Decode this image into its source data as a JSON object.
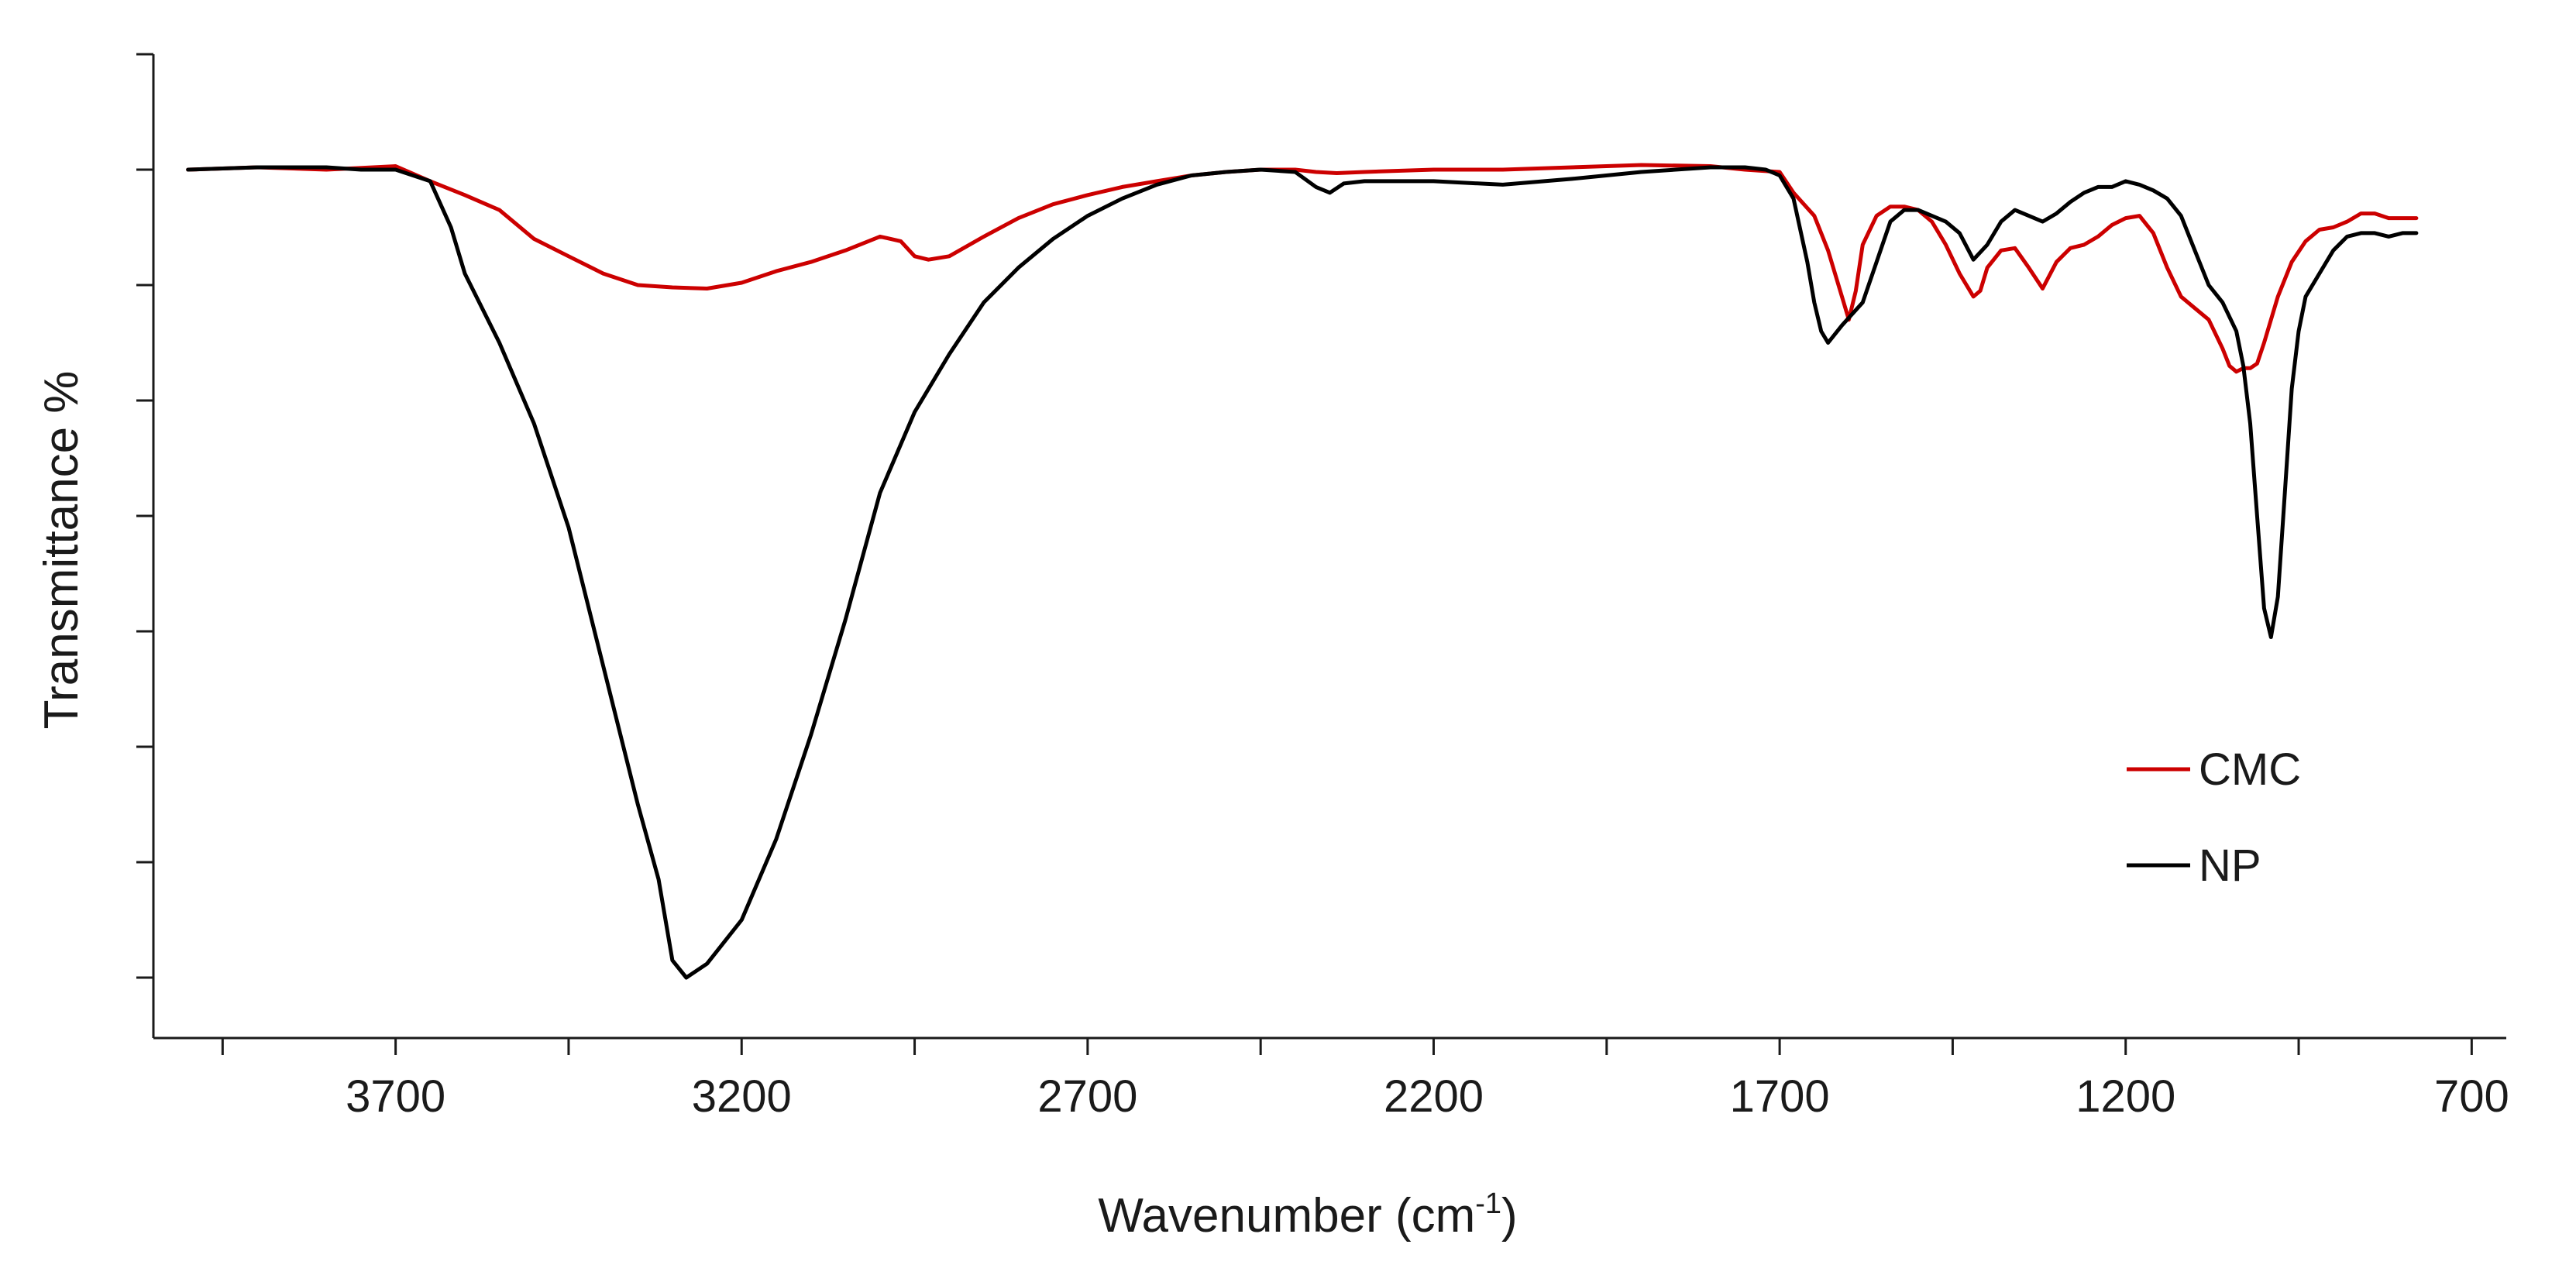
{
  "chart_data": {
    "type": "line",
    "title": "",
    "xlabel": "Wavenumber (cm",
    "xlabel_sup": "-1",
    "xlabel_close": ")",
    "ylabel": "Transmittance %",
    "xlim": [
      4050,
      650
    ],
    "xticks": [
      3700,
      3200,
      2700,
      2200,
      1700,
      1200,
      700
    ],
    "xtick_labels": [
      "3700",
      "3200",
      "2700",
      "2200",
      "1700",
      "1200",
      "700"
    ],
    "ylim": [
      0,
      8
    ],
    "y_tick_count": 8,
    "y_tick_labels_shown": false,
    "grid": false,
    "legend_position": "right-middle",
    "series": [
      {
        "name": "CMC",
        "color": "#cc0000",
        "x": [
          4000,
          3900,
          3800,
          3700,
          3650,
          3600,
          3550,
          3500,
          3450,
          3400,
          3350,
          3300,
          3250,
          3200,
          3150,
          3100,
          3050,
          3000,
          2970,
          2950,
          2930,
          2900,
          2850,
          2800,
          2750,
          2700,
          2650,
          2600,
          2550,
          2500,
          2450,
          2400,
          2370,
          2340,
          2300,
          2200,
          2100,
          2000,
          1900,
          1800,
          1750,
          1700,
          1680,
          1650,
          1630,
          1610,
          1600,
          1590,
          1580,
          1560,
          1540,
          1520,
          1500,
          1480,
          1460,
          1440,
          1420,
          1410,
          1400,
          1380,
          1360,
          1340,
          1320,
          1300,
          1280,
          1260,
          1240,
          1220,
          1200,
          1180,
          1160,
          1140,
          1120,
          1100,
          1080,
          1060,
          1050,
          1040,
          1030,
          1020,
          1010,
          1000,
          980,
          960,
          940,
          920,
          900,
          880,
          860,
          840,
          820,
          800,
          780
        ],
        "y": [
          7.0,
          7.02,
          7.0,
          7.03,
          6.9,
          6.78,
          6.65,
          6.4,
          6.25,
          6.1,
          6.0,
          5.98,
          5.97,
          6.02,
          6.12,
          6.2,
          6.3,
          6.42,
          6.38,
          6.25,
          6.22,
          6.25,
          6.42,
          6.58,
          6.7,
          6.78,
          6.85,
          6.9,
          6.95,
          6.98,
          7.0,
          7.0,
          6.98,
          6.97,
          6.98,
          7.0,
          7.0,
          7.02,
          7.04,
          7.03,
          7.0,
          6.98,
          6.8,
          6.6,
          6.3,
          5.9,
          5.7,
          5.95,
          6.35,
          6.6,
          6.68,
          6.68,
          6.65,
          6.55,
          6.35,
          6.1,
          5.9,
          5.95,
          6.15,
          6.3,
          6.32,
          6.15,
          5.97,
          6.2,
          6.32,
          6.35,
          6.42,
          6.52,
          6.58,
          6.6,
          6.45,
          6.15,
          5.9,
          5.8,
          5.7,
          5.45,
          5.3,
          5.25,
          5.28,
          5.28,
          5.32,
          5.5,
          5.9,
          6.2,
          6.38,
          6.48,
          6.5,
          6.55,
          6.62,
          6.62,
          6.58,
          6.58,
          6.58
        ]
      },
      {
        "name": "NP",
        "color": "#000000",
        "x": [
          4000,
          3900,
          3800,
          3750,
          3700,
          3650,
          3620,
          3600,
          3550,
          3500,
          3450,
          3400,
          3350,
          3320,
          3300,
          3280,
          3250,
          3200,
          3150,
          3100,
          3050,
          3000,
          2950,
          2900,
          2850,
          2800,
          2750,
          2700,
          2650,
          2600,
          2550,
          2500,
          2450,
          2400,
          2370,
          2350,
          2330,
          2300,
          2200,
          2100,
          2000,
          1900,
          1800,
          1750,
          1720,
          1700,
          1680,
          1660,
          1650,
          1640,
          1630,
          1610,
          1580,
          1560,
          1540,
          1520,
          1500,
          1480,
          1460,
          1440,
          1420,
          1400,
          1380,
          1360,
          1340,
          1320,
          1300,
          1280,
          1260,
          1240,
          1220,
          1200,
          1180,
          1160,
          1140,
          1120,
          1100,
          1080,
          1060,
          1040,
          1030,
          1020,
          1010,
          1000,
          990,
          980,
          970,
          960,
          950,
          940,
          920,
          900,
          880,
          860,
          840,
          820,
          800,
          780
        ],
        "y": [
          7.0,
          7.02,
          7.02,
          7.0,
          7.0,
          6.9,
          6.5,
          6.1,
          5.5,
          4.8,
          3.9,
          2.7,
          1.5,
          0.85,
          0.15,
          0.0,
          0.12,
          0.5,
          1.2,
          2.1,
          3.1,
          4.2,
          4.9,
          5.4,
          5.85,
          6.15,
          6.4,
          6.6,
          6.75,
          6.87,
          6.95,
          6.98,
          7.0,
          6.98,
          6.85,
          6.8,
          6.88,
          6.9,
          6.9,
          6.87,
          6.92,
          6.98,
          7.02,
          7.02,
          7.0,
          6.95,
          6.75,
          6.2,
          5.85,
          5.6,
          5.5,
          5.65,
          5.85,
          6.2,
          6.55,
          6.65,
          6.65,
          6.6,
          6.55,
          6.45,
          6.22,
          6.35,
          6.55,
          6.65,
          6.6,
          6.55,
          6.62,
          6.72,
          6.8,
          6.85,
          6.85,
          6.9,
          6.87,
          6.82,
          6.75,
          6.6,
          6.3,
          6.0,
          5.85,
          5.6,
          5.3,
          4.8,
          4.0,
          3.2,
          2.95,
          3.3,
          4.2,
          5.1,
          5.6,
          5.9,
          6.1,
          6.3,
          6.42,
          6.45,
          6.45,
          6.42,
          6.45,
          6.45
        ]
      }
    ]
  }
}
